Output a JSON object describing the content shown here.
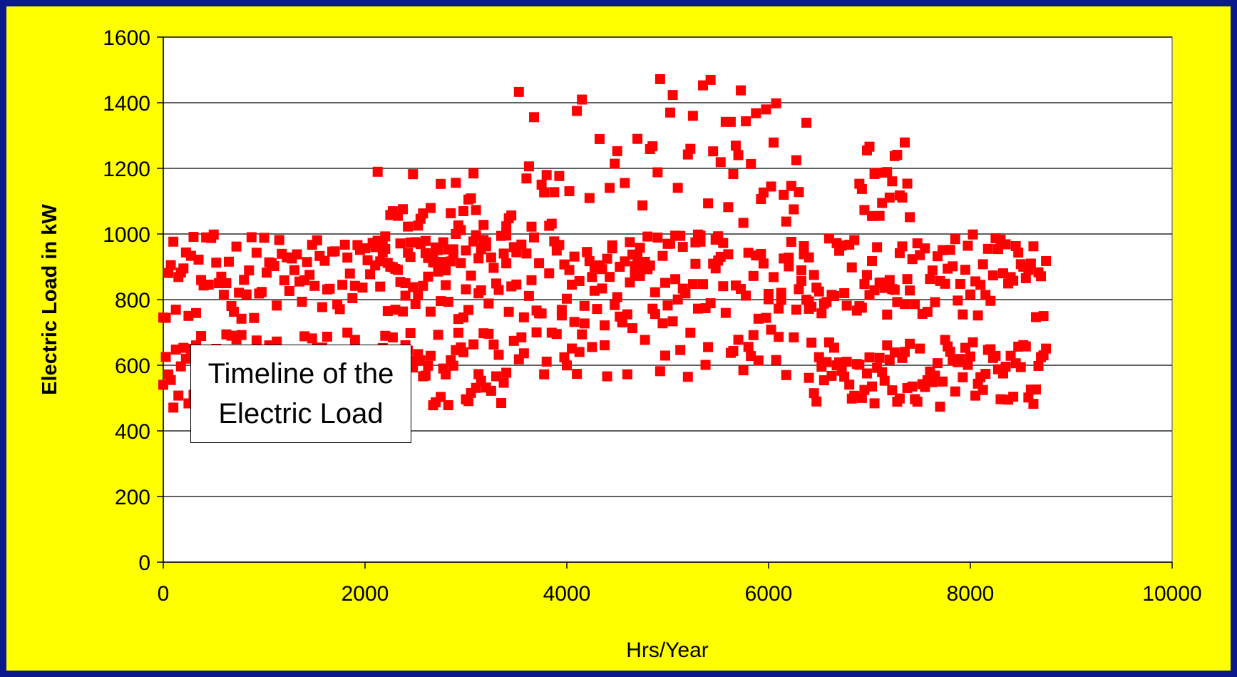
{
  "chart_data": {
    "type": "scatter",
    "title": "",
    "xlabel": "Hrs/Year",
    "ylabel": "Electric Load in kW",
    "xlim": [
      0,
      10000
    ],
    "ylim": [
      0,
      1600
    ],
    "x_ticks": [
      0,
      2000,
      4000,
      6000,
      8000,
      10000
    ],
    "y_ticks": [
      0,
      200,
      400,
      600,
      800,
      1000,
      1200,
      1400,
      1600
    ],
    "grid": "horizontal major gridlines",
    "legend": "none",
    "annotation": [
      "Timeline of the",
      "Electric Load"
    ],
    "colors": {
      "page_background": "#0a1a8c",
      "chart_area": "#ffff00",
      "plot_area": "#ffffff",
      "marker": "#ff0000"
    },
    "series": [
      {
        "marker": "square",
        "x_range": [
          0,
          8760
        ],
        "x_step": 25,
        "bands": [
          {
            "x": [
              0,
              3400
            ],
            "y": [
              740,
              1000
            ]
          },
          {
            "x": [
              3400,
              6400
            ],
            "y": [
              650,
              1480
            ]
          },
          {
            "x": [
              6400,
              8760
            ],
            "y": [
              740,
              1000
            ]
          },
          {
            "x": [
              0,
              3400
            ],
            "y": [
              470,
              700
            ]
          },
          {
            "x": [
              3400,
              6400
            ],
            "y": [
              560,
              1000
            ]
          },
          {
            "x": [
              6400,
              8760
            ],
            "y": [
              470,
              680
            ]
          },
          {
            "x": [
              2100,
              3200
            ],
            "y": [
              850,
              1190
            ]
          },
          {
            "x": [
              6900,
              7400
            ],
            "y": [
              1050,
              1280
            ]
          }
        ]
      }
    ]
  }
}
